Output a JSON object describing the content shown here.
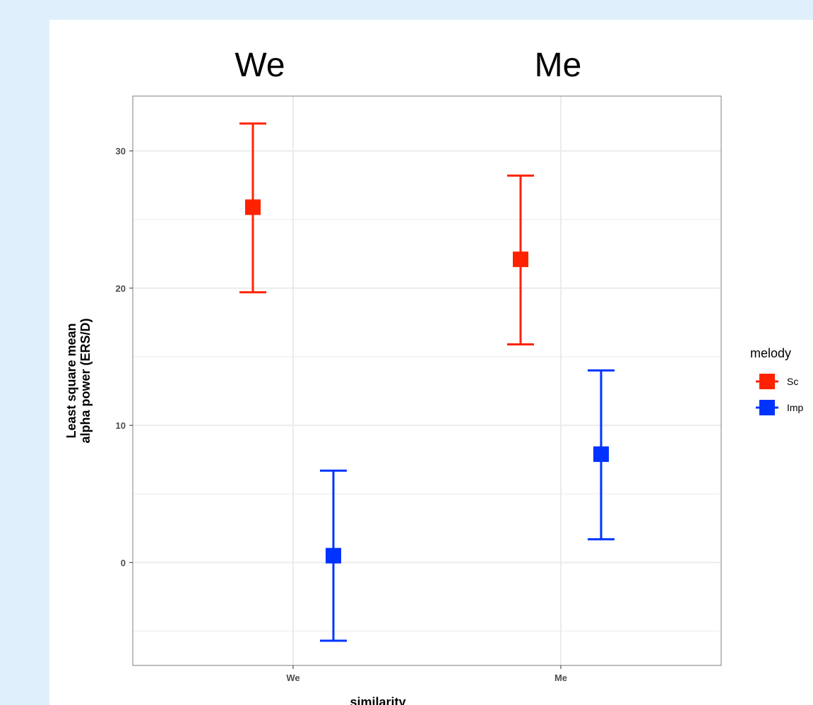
{
  "chart_data": {
    "type": "scatter",
    "subtype": "point-with-error-bars",
    "header_labels": [
      "We",
      "Me"
    ],
    "xlabel": "similarity",
    "ylabel_lines": [
      "Least square mean",
      "alpha power (ERS/D)"
    ],
    "categories": [
      "We",
      "Me"
    ],
    "yticks": [
      "0",
      "10",
      "20",
      "30"
    ],
    "ylim": [
      -7.5,
      34
    ],
    "grid": true,
    "legend_title": "melody",
    "legend_position": "right",
    "series": [
      {
        "name": "Sc",
        "color": "#ff2200",
        "values": [
          25.9,
          22.1
        ],
        "lower": [
          19.7,
          15.9
        ],
        "upper": [
          32.0,
          28.2
        ]
      },
      {
        "name": "Imp",
        "color": "#0033ff",
        "values": [
          0.5,
          7.9
        ],
        "lower": [
          -5.7,
          1.7
        ],
        "upper": [
          6.7,
          14.0
        ]
      }
    ]
  }
}
